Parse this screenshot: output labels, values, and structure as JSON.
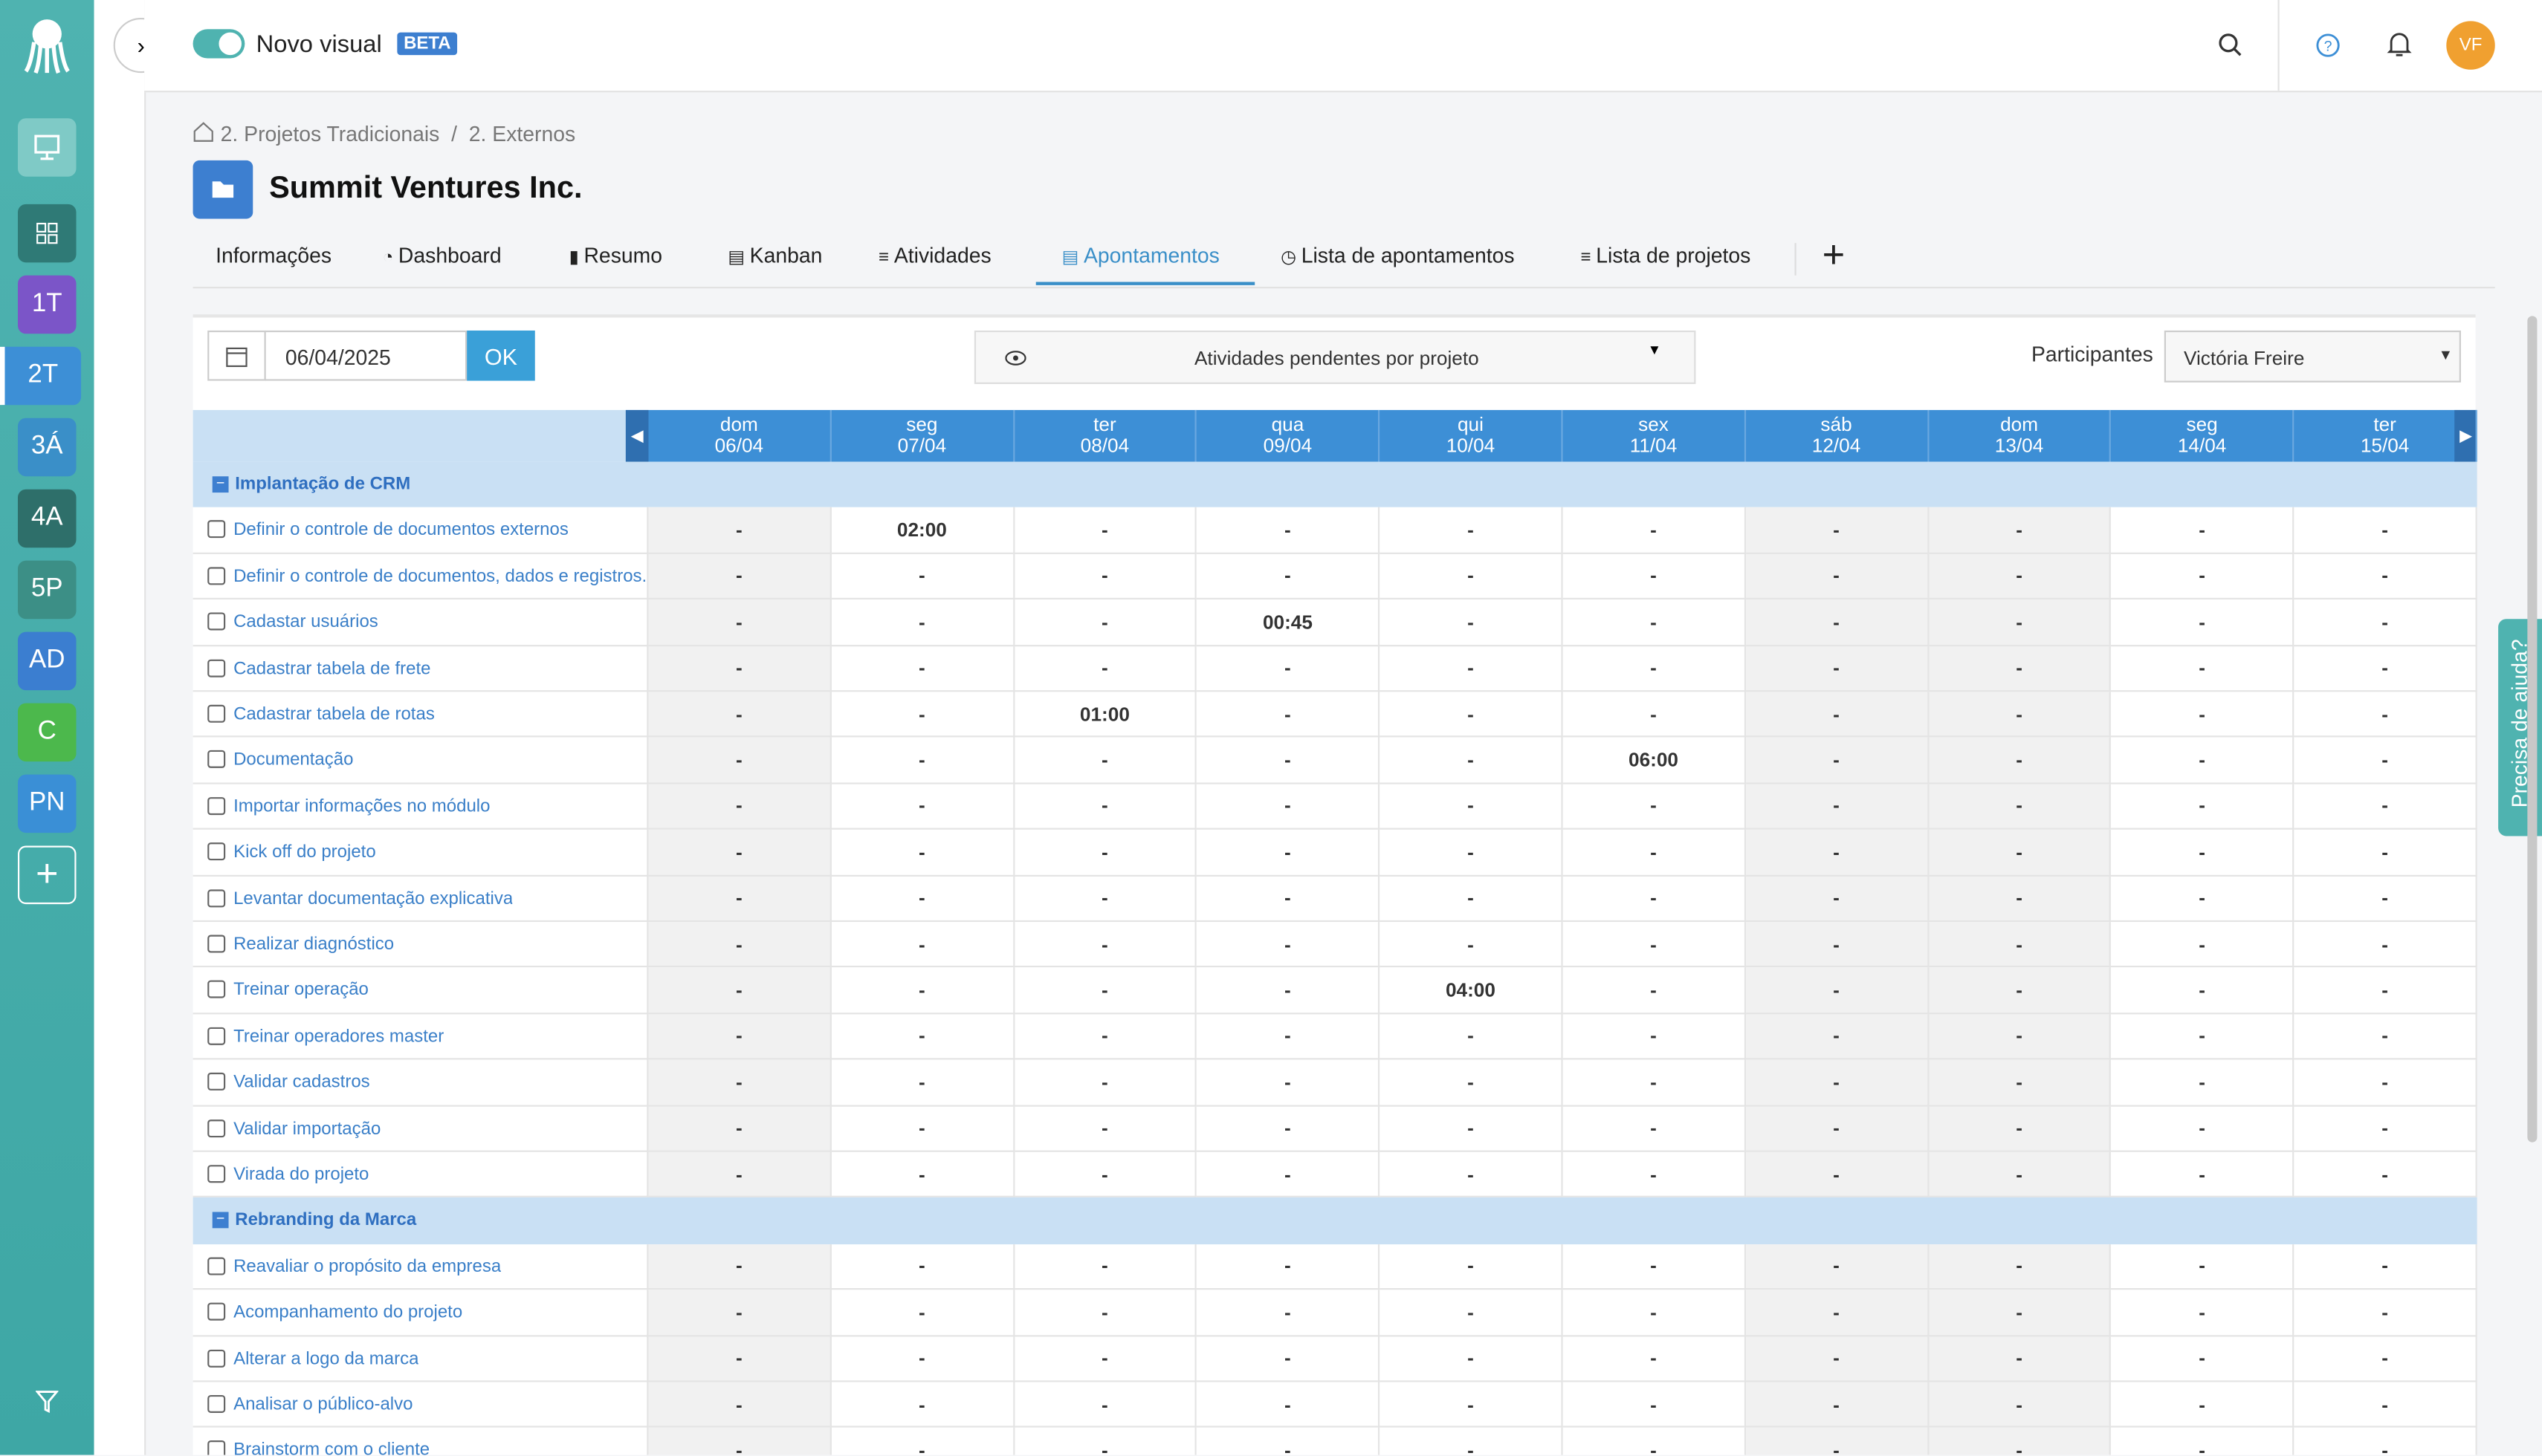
{
  "sidebar": {
    "items": [
      "1T",
      "2T",
      "3Á",
      "4A",
      "5P",
      "AD",
      "C",
      "PN"
    ]
  },
  "header": {
    "toggle_label": "Novo visual",
    "badge": "BETA",
    "avatar": "VF"
  },
  "breadcrumb": [
    "2. Projetos Tradicionais",
    "2. Externos"
  ],
  "title": "Summit Ventures Inc.",
  "tabs": [
    "Informações",
    "Dashboard",
    "Resumo",
    "Kanban",
    "Atividades",
    "Apontamentos",
    "Lista de apontamentos",
    "Lista de projetos"
  ],
  "toolbar": {
    "date": "06/04/2025",
    "ok": "OK",
    "view": "Atividades pendentes por projeto",
    "participants_label": "Participantes",
    "participant": "Victória Freire"
  },
  "grid": {
    "days": [
      {
        "weekday": "dom",
        "date": "06/04"
      },
      {
        "weekday": "seg",
        "date": "07/04"
      },
      {
        "weekday": "ter",
        "date": "08/04"
      },
      {
        "weekday": "qua",
        "date": "09/04"
      },
      {
        "weekday": "qui",
        "date": "10/04"
      },
      {
        "weekday": "sex",
        "date": "11/04"
      },
      {
        "weekday": "sáb",
        "date": "12/04"
      },
      {
        "weekday": "dom",
        "date": "13/04"
      },
      {
        "weekday": "seg",
        "date": "14/04"
      },
      {
        "weekday": "ter",
        "date": "15/04"
      }
    ],
    "groups": [
      {
        "name": "Implantação de CRM",
        "rows": [
          {
            "task": "Definir o controle de documentos externos",
            "values": [
              "-",
              "02:00",
              "-",
              "-",
              "-",
              "-",
              "-",
              "-",
              "-",
              "-"
            ]
          },
          {
            "task": "Definir o controle de documentos, dados e registros.",
            "values": [
              "-",
              "-",
              "-",
              "-",
              "-",
              "-",
              "-",
              "-",
              "-",
              "-"
            ]
          },
          {
            "task": "Cadastar usuários",
            "values": [
              "-",
              "-",
              "-",
              "00:45",
              "-",
              "-",
              "-",
              "-",
              "-",
              "-"
            ]
          },
          {
            "task": "Cadastrar tabela de frete",
            "values": [
              "-",
              "-",
              "-",
              "-",
              "-",
              "-",
              "-",
              "-",
              "-",
              "-"
            ]
          },
          {
            "task": "Cadastrar tabela de rotas",
            "values": [
              "-",
              "-",
              "01:00",
              "-",
              "-",
              "-",
              "-",
              "-",
              "-",
              "-"
            ]
          },
          {
            "task": "Documentação",
            "values": [
              "-",
              "-",
              "-",
              "-",
              "-",
              "06:00",
              "-",
              "-",
              "-",
              "-"
            ]
          },
          {
            "task": "Importar informações no módulo",
            "values": [
              "-",
              "-",
              "-",
              "-",
              "-",
              "-",
              "-",
              "-",
              "-",
              "-"
            ]
          },
          {
            "task": "Kick off do projeto",
            "values": [
              "-",
              "-",
              "-",
              "-",
              "-",
              "-",
              "-",
              "-",
              "-",
              "-"
            ]
          },
          {
            "task": "Levantar documentação explicativa",
            "values": [
              "-",
              "-",
              "-",
              "-",
              "-",
              "-",
              "-",
              "-",
              "-",
              "-"
            ]
          },
          {
            "task": "Realizar diagnóstico",
            "values": [
              "-",
              "-",
              "-",
              "-",
              "-",
              "-",
              "-",
              "-",
              "-",
              "-"
            ]
          },
          {
            "task": "Treinar operação",
            "values": [
              "-",
              "-",
              "-",
              "-",
              "04:00",
              "-",
              "-",
              "-",
              "-",
              "-"
            ]
          },
          {
            "task": "Treinar operadores master",
            "values": [
              "-",
              "-",
              "-",
              "-",
              "-",
              "-",
              "-",
              "-",
              "-",
              "-"
            ]
          },
          {
            "task": "Validar cadastros",
            "values": [
              "-",
              "-",
              "-",
              "-",
              "-",
              "-",
              "-",
              "-",
              "-",
              "-"
            ]
          },
          {
            "task": "Validar importação",
            "values": [
              "-",
              "-",
              "-",
              "-",
              "-",
              "-",
              "-",
              "-",
              "-",
              "-"
            ]
          },
          {
            "task": "Virada do projeto",
            "values": [
              "-",
              "-",
              "-",
              "-",
              "-",
              "-",
              "-",
              "-",
              "-",
              "-"
            ]
          }
        ]
      },
      {
        "name": "Rebranding da Marca",
        "rows": [
          {
            "task": "Reavaliar o propósito da empresa",
            "values": [
              "-",
              "-",
              "-",
              "-",
              "-",
              "-",
              "-",
              "-",
              "-",
              "-"
            ]
          },
          {
            "task": "Acompanhamento do projeto",
            "values": [
              "-",
              "-",
              "-",
              "-",
              "-",
              "-",
              "-",
              "-",
              "-",
              "-"
            ]
          },
          {
            "task": "Alterar a logo da marca",
            "values": [
              "-",
              "-",
              "-",
              "-",
              "-",
              "-",
              "-",
              "-",
              "-",
              "-"
            ]
          },
          {
            "task": "Analisar o público-alvo",
            "values": [
              "-",
              "-",
              "-",
              "-",
              "-",
              "-",
              "-",
              "-",
              "-",
              "-"
            ]
          },
          {
            "task": "Brainstorm com o cliente",
            "values": [
              "-",
              "-",
              "-",
              "-",
              "-",
              "-",
              "-",
              "-",
              "-",
              "-"
            ]
          }
        ]
      }
    ]
  },
  "help": "Precisa de ajuda?"
}
